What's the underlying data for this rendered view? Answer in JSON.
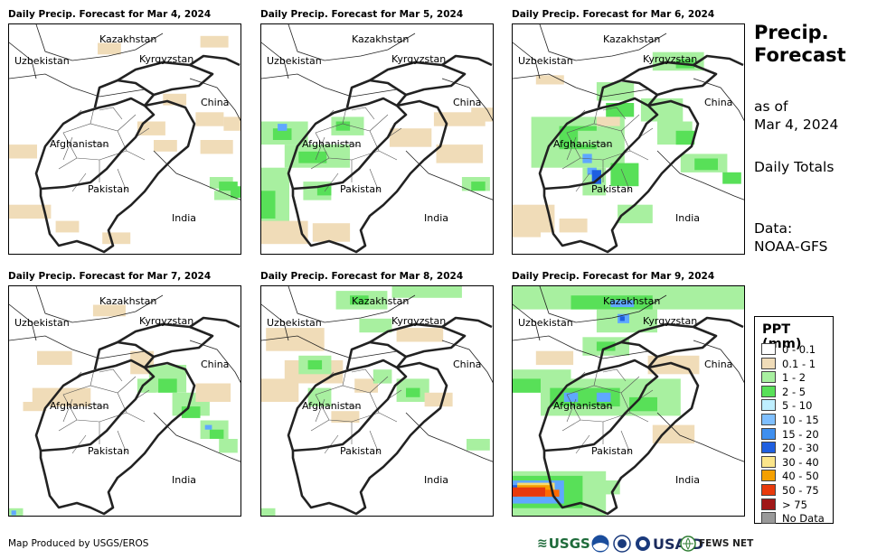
{
  "panels": [
    {
      "title": "Daily Precip. Forecast for Mar 4, 2024",
      "precip": [
        [
          "#f0dcb8",
          0.38,
          0.08,
          0.1,
          0.05
        ],
        [
          "#f0dcb8",
          0.82,
          0.05,
          0.12,
          0.05
        ],
        [
          "#f0dcb8",
          0.55,
          0.42,
          0.12,
          0.06
        ],
        [
          "#f0dcb8",
          0.62,
          0.5,
          0.1,
          0.05
        ],
        [
          "#f0dcb8",
          0.66,
          0.3,
          0.1,
          0.05
        ],
        [
          "#f0dcb8",
          0.8,
          0.38,
          0.12,
          0.06
        ],
        [
          "#f0dcb8",
          0.82,
          0.5,
          0.14,
          0.06
        ],
        [
          "#f0dcb8",
          0.0,
          0.52,
          0.12,
          0.06
        ],
        [
          "#f0dcb8",
          0.0,
          0.78,
          0.18,
          0.06
        ],
        [
          "#f0dcb8",
          0.2,
          0.85,
          0.1,
          0.05
        ],
        [
          "#f0dcb8",
          0.4,
          0.9,
          0.12,
          0.05
        ],
        [
          "#f0dcb8",
          0.92,
          0.4,
          0.08,
          0.06
        ],
        [
          "#a8f0a0",
          0.86,
          0.66,
          0.1,
          0.05
        ],
        [
          "#a8f0a0",
          0.88,
          0.72,
          0.1,
          0.04
        ],
        [
          "#58e058",
          0.9,
          0.68,
          0.08,
          0.04
        ],
        [
          "#58e058",
          0.95,
          0.7,
          0.05,
          0.05
        ]
      ]
    },
    {
      "title": "Daily Precip. Forecast for Mar 5, 2024",
      "precip": [
        [
          "#a8f0a0",
          0.0,
          0.42,
          0.2,
          0.1
        ],
        [
          "#58e058",
          0.05,
          0.45,
          0.08,
          0.05
        ],
        [
          "#5fa8ff",
          0.07,
          0.43,
          0.04,
          0.03
        ],
        [
          "#a8f0a0",
          0.1,
          0.52,
          0.28,
          0.1
        ],
        [
          "#58e058",
          0.16,
          0.55,
          0.12,
          0.05
        ],
        [
          "#a8f0a0",
          0.0,
          0.62,
          0.12,
          0.28
        ],
        [
          "#58e058",
          0.0,
          0.72,
          0.06,
          0.12
        ],
        [
          "#a8f0a0",
          0.18,
          0.68,
          0.12,
          0.08
        ],
        [
          "#58e058",
          0.24,
          0.7,
          0.06,
          0.04
        ],
        [
          "#a8f0a0",
          0.3,
          0.4,
          0.14,
          0.08
        ],
        [
          "#58e058",
          0.32,
          0.42,
          0.06,
          0.04
        ],
        [
          "#f0dcb8",
          0.0,
          0.85,
          0.2,
          0.1
        ],
        [
          "#f0dcb8",
          0.22,
          0.86,
          0.16,
          0.08
        ],
        [
          "#f0dcb8",
          0.55,
          0.45,
          0.18,
          0.08
        ],
        [
          "#f0dcb8",
          0.74,
          0.38,
          0.22,
          0.06
        ],
        [
          "#f0dcb8",
          0.75,
          0.52,
          0.2,
          0.08
        ],
        [
          "#a8f0a0",
          0.86,
          0.66,
          0.12,
          0.06
        ],
        [
          "#58e058",
          0.9,
          0.68,
          0.06,
          0.04
        ],
        [
          "#f0dcb8",
          0.9,
          0.36,
          0.1,
          0.06
        ]
      ]
    },
    {
      "title": "Daily Precip. Forecast for Mar 6, 2024",
      "precip": [
        [
          "#a8f0a0",
          0.08,
          0.4,
          0.4,
          0.22
        ],
        [
          "#58e058",
          0.2,
          0.44,
          0.16,
          0.1
        ],
        [
          "#a8f0a0",
          0.3,
          0.62,
          0.1,
          0.12
        ],
        [
          "#a8f0a0",
          0.28,
          0.46,
          0.1,
          0.06
        ],
        [
          "#58e058",
          0.4,
          0.34,
          0.12,
          0.06
        ],
        [
          "#a8f0a0",
          0.36,
          0.25,
          0.16,
          0.08
        ],
        [
          "#58e058",
          0.42,
          0.6,
          0.12,
          0.1
        ],
        [
          "#5fa8ff",
          0.3,
          0.56,
          0.04,
          0.04
        ],
        [
          "#5fa8ff",
          0.32,
          0.62,
          0.04,
          0.03
        ],
        [
          "#1f5fe0",
          0.34,
          0.63,
          0.04,
          0.06
        ],
        [
          "#a8f0a0",
          0.55,
          0.32,
          0.18,
          0.1
        ],
        [
          "#a8f0a0",
          0.62,
          0.42,
          0.15,
          0.1
        ],
        [
          "#58e058",
          0.7,
          0.46,
          0.08,
          0.06
        ],
        [
          "#a8f0a0",
          0.72,
          0.56,
          0.2,
          0.08
        ],
        [
          "#58e058",
          0.78,
          0.58,
          0.1,
          0.05
        ],
        [
          "#58e058",
          0.9,
          0.64,
          0.08,
          0.05
        ],
        [
          "#a8f0a0",
          0.6,
          0.12,
          0.22,
          0.08
        ],
        [
          "#58e058",
          0.7,
          0.15,
          0.08,
          0.04
        ],
        [
          "#a8f0a0",
          0.45,
          0.78,
          0.15,
          0.08
        ],
        [
          "#f0dcb8",
          0.0,
          0.78,
          0.18,
          0.12
        ],
        [
          "#f0dcb8",
          0.0,
          0.86,
          0.12,
          0.06
        ],
        [
          "#f0dcb8",
          0.2,
          0.84,
          0.12,
          0.06
        ],
        [
          "#f0dcb8",
          0.36,
          0.4,
          0.1,
          0.04
        ],
        [
          "#f0dcb8",
          0.1,
          0.22,
          0.12,
          0.04
        ]
      ]
    },
    {
      "title": "Daily Precip. Forecast for Mar 7, 2024",
      "precip": [
        [
          "#f0dcb8",
          0.1,
          0.44,
          0.25,
          0.08
        ],
        [
          "#f0dcb8",
          0.12,
          0.28,
          0.15,
          0.06
        ],
        [
          "#f0dcb8",
          0.36,
          0.08,
          0.14,
          0.05
        ],
        [
          "#f0dcb8",
          0.52,
          0.28,
          0.1,
          0.1
        ],
        [
          "#f0dcb8",
          0.06,
          0.5,
          0.1,
          0.04
        ],
        [
          "#a8f0a0",
          0.6,
          0.34,
          0.16,
          0.12
        ],
        [
          "#58e058",
          0.64,
          0.4,
          0.08,
          0.06
        ],
        [
          "#a8f0a0",
          0.7,
          0.46,
          0.16,
          0.1
        ],
        [
          "#58e058",
          0.74,
          0.52,
          0.08,
          0.05
        ],
        [
          "#a8f0a0",
          0.82,
          0.58,
          0.12,
          0.08
        ],
        [
          "#58e058",
          0.86,
          0.62,
          0.06,
          0.04
        ],
        [
          "#5fa8ff",
          0.84,
          0.6,
          0.03,
          0.02
        ],
        [
          "#a8f0a0",
          0.9,
          0.66,
          0.08,
          0.06
        ],
        [
          "#a8f0a0",
          0.55,
          0.4,
          0.08,
          0.06
        ],
        [
          "#f0dcb8",
          0.8,
          0.42,
          0.15,
          0.08
        ],
        [
          "#a8f0a0",
          0.0,
          0.96,
          0.06,
          0.04
        ],
        [
          "#5fa8ff",
          0.01,
          0.97,
          0.02,
          0.02
        ]
      ]
    },
    {
      "title": "Daily Precip. Forecast for Mar 8, 2024",
      "precip": [
        [
          "#a8f0a0",
          0.32,
          0.02,
          0.22,
          0.08
        ],
        [
          "#58e058",
          0.38,
          0.04,
          0.08,
          0.04
        ],
        [
          "#a8f0a0",
          0.56,
          0.0,
          0.3,
          0.05
        ],
        [
          "#a8f0a0",
          0.42,
          0.14,
          0.14,
          0.06
        ],
        [
          "#f0dcb8",
          0.02,
          0.18,
          0.25,
          0.1
        ],
        [
          "#f0dcb8",
          0.1,
          0.32,
          0.25,
          0.1
        ],
        [
          "#a8f0a0",
          0.16,
          0.3,
          0.14,
          0.08
        ],
        [
          "#58e058",
          0.2,
          0.32,
          0.06,
          0.04
        ],
        [
          "#f0dcb8",
          0.0,
          0.4,
          0.16,
          0.1
        ],
        [
          "#a8f0a0",
          0.2,
          0.44,
          0.1,
          0.08
        ],
        [
          "#f0dcb8",
          0.4,
          0.4,
          0.1,
          0.06
        ],
        [
          "#a8f0a0",
          0.48,
          0.36,
          0.08,
          0.06
        ],
        [
          "#a8f0a0",
          0.58,
          0.4,
          0.14,
          0.1
        ],
        [
          "#58e058",
          0.62,
          0.44,
          0.06,
          0.04
        ],
        [
          "#f0dcb8",
          0.7,
          0.46,
          0.12,
          0.06
        ],
        [
          "#a8f0a0",
          0.88,
          0.66,
          0.1,
          0.05
        ],
        [
          "#f0dcb8",
          0.3,
          0.54,
          0.12,
          0.05
        ],
        [
          "#a8f0a0",
          0.0,
          0.96,
          0.06,
          0.04
        ],
        [
          "#f0dcb8",
          0.58,
          0.18,
          0.2,
          0.06
        ]
      ]
    },
    {
      "title": "Daily Precip. Forecast for Mar 9, 2024",
      "precip": [
        [
          "#a8f0a0",
          0.0,
          0.0,
          1.0,
          0.1
        ],
        [
          "#58e058",
          0.25,
          0.04,
          0.35,
          0.06
        ],
        [
          "#5fa8ff",
          0.42,
          0.06,
          0.1,
          0.03
        ],
        [
          "#a8f0a0",
          0.36,
          0.1,
          0.26,
          0.1
        ],
        [
          "#5fa8ff",
          0.45,
          0.12,
          0.05,
          0.04
        ],
        [
          "#1f5fe0",
          0.46,
          0.13,
          0.02,
          0.02
        ],
        [
          "#a8f0a0",
          0.0,
          0.36,
          0.25,
          0.1
        ],
        [
          "#58e058",
          0.0,
          0.4,
          0.12,
          0.06
        ],
        [
          "#f0dcb8",
          0.1,
          0.28,
          0.16,
          0.06
        ],
        [
          "#a8f0a0",
          0.12,
          0.4,
          0.6,
          0.16
        ],
        [
          "#58e058",
          0.16,
          0.44,
          0.3,
          0.08
        ],
        [
          "#5fa8ff",
          0.22,
          0.46,
          0.06,
          0.04
        ],
        [
          "#5fa8ff",
          0.36,
          0.46,
          0.06,
          0.04
        ],
        [
          "#58e058",
          0.5,
          0.48,
          0.12,
          0.06
        ],
        [
          "#a8f0a0",
          0.3,
          0.22,
          0.2,
          0.08
        ],
        [
          "#58e058",
          0.36,
          0.24,
          0.08,
          0.04
        ],
        [
          "#f0dcb8",
          0.58,
          0.3,
          0.22,
          0.08
        ],
        [
          "#f0dcb8",
          0.6,
          0.6,
          0.18,
          0.08
        ],
        [
          "#a8f0a0",
          0.0,
          0.8,
          0.4,
          0.2
        ],
        [
          "#58e058",
          0.0,
          0.82,
          0.3,
          0.14
        ],
        [
          "#5fa8ff",
          0.0,
          0.84,
          0.22,
          0.1
        ],
        [
          "#1f5fe0",
          0.0,
          0.86,
          0.18,
          0.05
        ],
        [
          "#f7dc6f",
          0.02,
          0.85,
          0.16,
          0.06
        ],
        [
          "#f5a000",
          0.02,
          0.86,
          0.15,
          0.04
        ],
        [
          "#e83a0c",
          0.0,
          0.87,
          0.14,
          0.04
        ],
        [
          "#ff6a00",
          0.14,
          0.88,
          0.06,
          0.03
        ],
        [
          "#a8f0a0",
          0.36,
          0.84,
          0.1,
          0.06
        ]
      ]
    }
  ],
  "labels": {
    "kazakhstan": "Kazakhstan",
    "uzbekistan": "Uzbekistan",
    "kyrgyzstan": "Kyrgyzstan",
    "china": "China",
    "afghanistan": "Afghanistan",
    "pakistan": "Pakistan",
    "india": "India"
  },
  "sidebar": {
    "title_line1": "Precip.",
    "title_line2": "Forecast",
    "as_of_line1": "as of",
    "as_of_line2": "Mar 4, 2024",
    "daily_totals": "Daily Totals",
    "data_line1": "Data:",
    "data_line2": "NOAA-GFS"
  },
  "legend": {
    "title": "PPT (mm)",
    "items": [
      {
        "label": "0 - 0.1",
        "color": "#ffffff"
      },
      {
        "label": "0.1 - 1",
        "color": "#f0dcb8"
      },
      {
        "label": "1 - 2",
        "color": "#a8f0a0"
      },
      {
        "label": "2 - 5",
        "color": "#58e058"
      },
      {
        "label": "5 - 10",
        "color": "#bfefff"
      },
      {
        "label": "10 - 15",
        "color": "#7fbfff"
      },
      {
        "label": "15 - 20",
        "color": "#3f8fef"
      },
      {
        "label": "20 - 30",
        "color": "#1f5fe0"
      },
      {
        "label": "30 - 40",
        "color": "#fbe58a"
      },
      {
        "label": "40 - 50",
        "color": "#f5a000"
      },
      {
        "label": "50 - 75",
        "color": "#e83a0c"
      },
      {
        "label": "> 75",
        "color": "#a01818"
      },
      {
        "label": "No Data",
        "color": "#999999"
      }
    ]
  },
  "footer": {
    "credit": "Map Produced by USGS/EROS"
  },
  "logos": {
    "usgs": "USGS",
    "usaid": "USAID",
    "fews": "FEWS NET"
  }
}
